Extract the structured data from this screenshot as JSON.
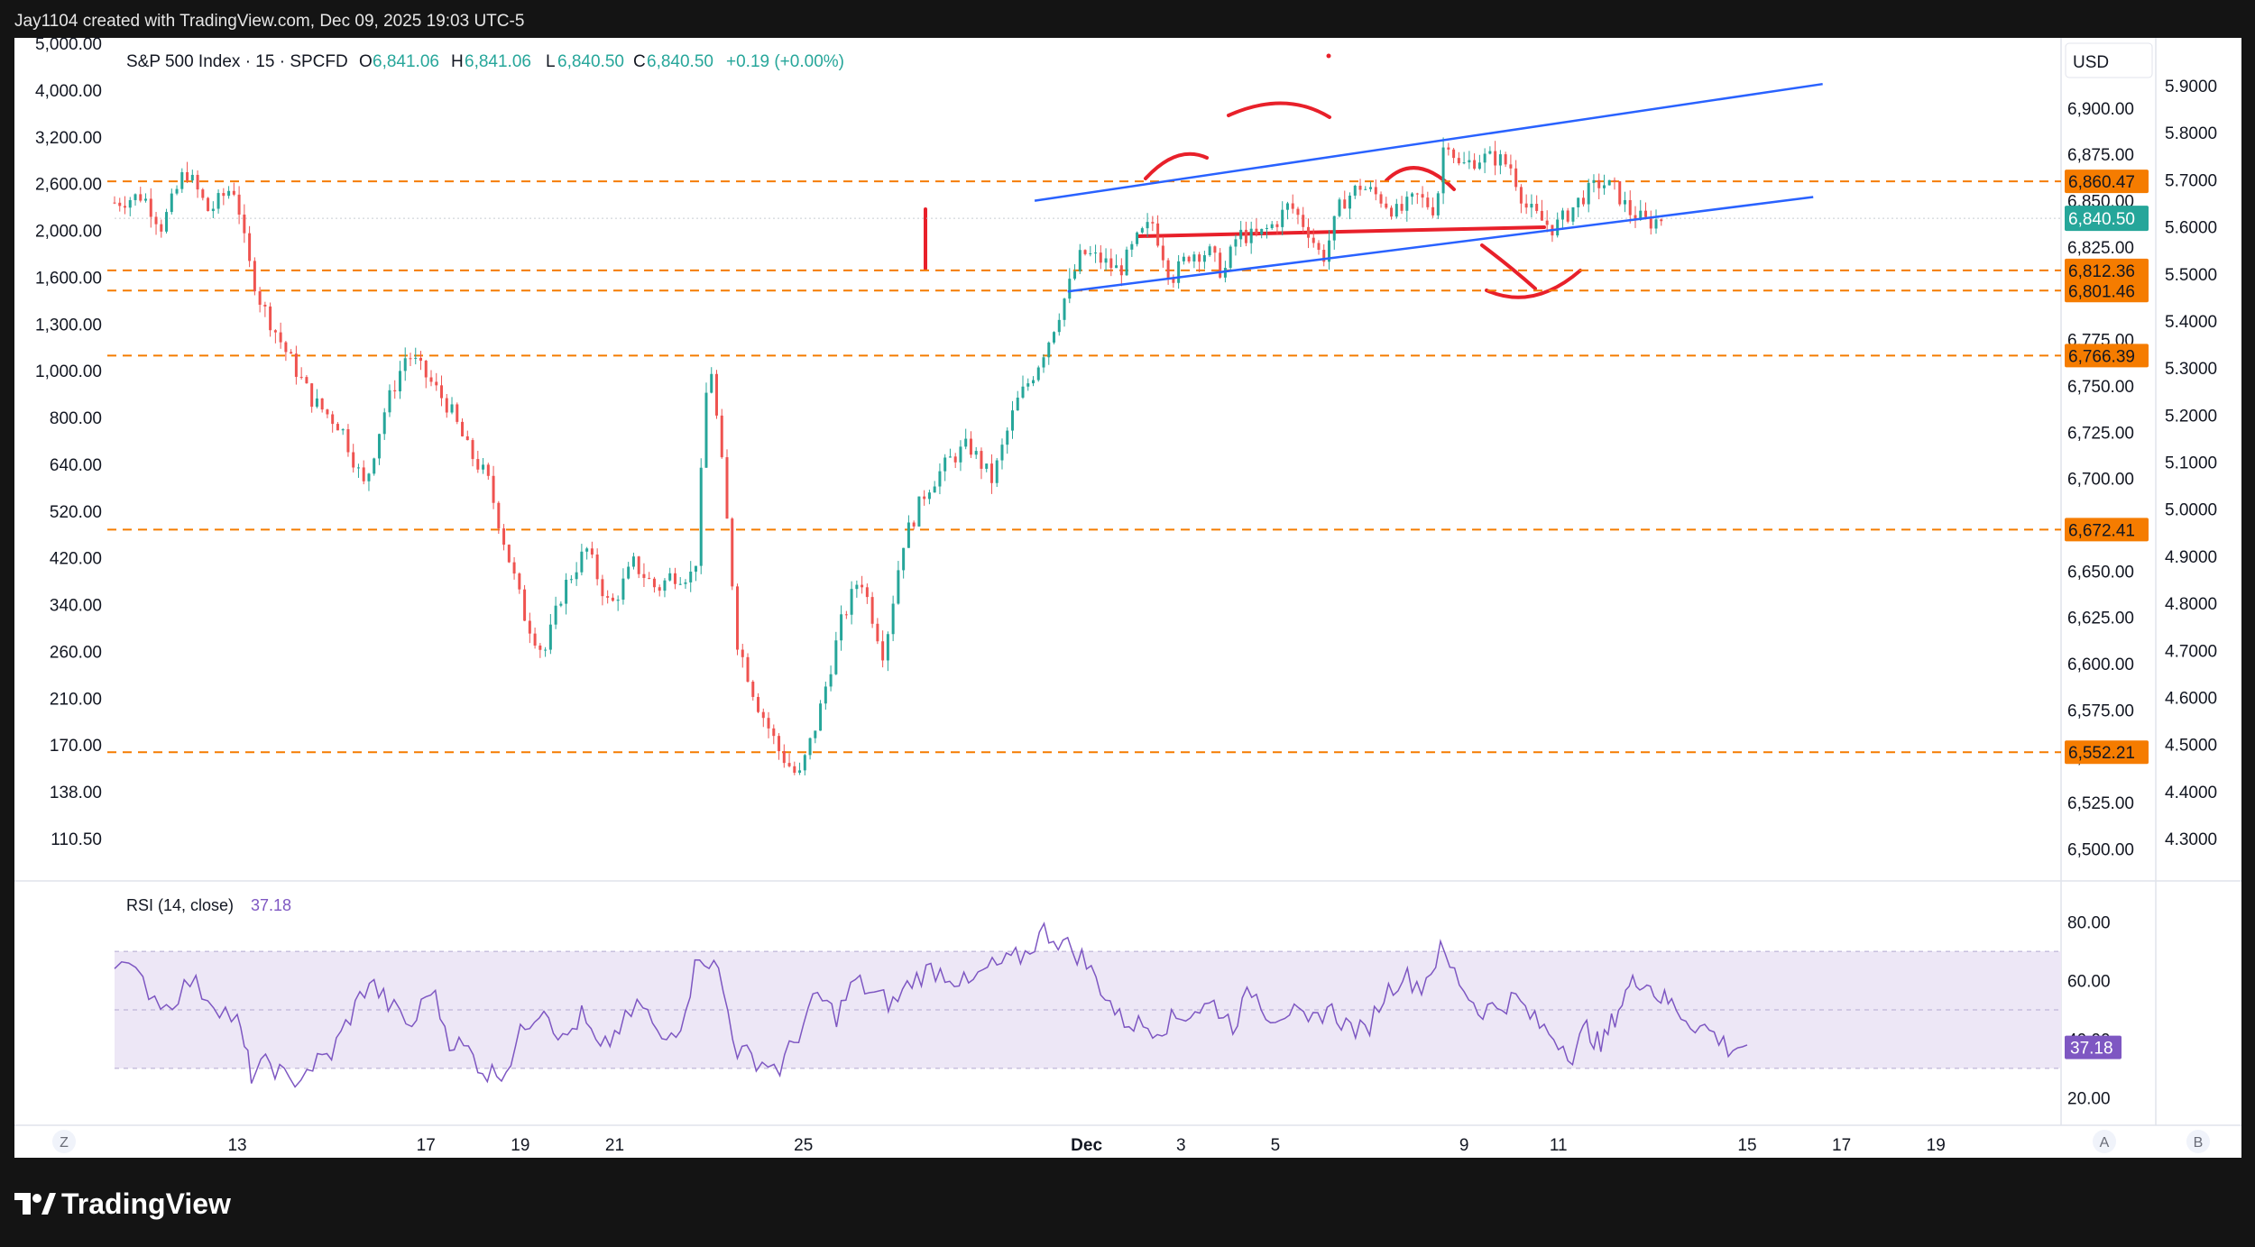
{
  "header": {
    "credit": "Jay1104 created with TradingView.com, Dec 09, 2025 19:03 UTC-5"
  },
  "legend": {
    "symbol": "S&P 500 Index · 15 · SPCFD",
    "o_label": "O",
    "o_value": "6,841.06",
    "h_label": "H",
    "h_value": "6,841.06",
    "l_label": "L",
    "l_value": "6,840.50",
    "c_label": "C",
    "c_value": "6,840.50",
    "change": "+0.19 (+0.00%)"
  },
  "currency": "USD",
  "rsi_label": "RSI (14, close)",
  "rsi_value": "37.18",
  "footer": {
    "brand": "TradingView"
  },
  "bottom_buttons": {
    "left": "Z",
    "a": "A",
    "b": "B"
  },
  "colors": {
    "up": "#26a69a",
    "down": "#ef5350",
    "level": "#f57c00",
    "trend": "#2962ff",
    "annotation": "#e8202a",
    "rsi": "#7e57c2",
    "rsi_band": "#ede7f6",
    "last_price": "#26a69a"
  },
  "chart_data": {
    "type": "candlestick",
    "title": "S&P 500 Index · 15 · SPCFD",
    "price_axis": {
      "min": 6490,
      "max": 6935,
      "ticks": [
        "6,500.00",
        "6,525.00",
        "6,550.00",
        "6,575.00",
        "6,600.00",
        "6,625.00",
        "6,650.00",
        "6,675.00",
        "6,700.00",
        "6,725.00",
        "6,750.00",
        "6,775.00",
        "6,800.00",
        "6,825.00",
        "6,850.00",
        "6,875.00",
        "6,900.00"
      ],
      "tick_values": [
        6500,
        6525,
        6550,
        6575,
        6600,
        6625,
        6650,
        6675,
        6700,
        6725,
        6750,
        6775,
        6800,
        6825,
        6850,
        6875,
        6900
      ]
    },
    "left_axis_ticks": [
      "5,000.00",
      "4,000.00",
      "3,200.00",
      "2,600.00",
      "2,000.00",
      "1,600.00",
      "1,300.00",
      "1,000.00",
      "800.00",
      "640.00",
      "520.00",
      "420.00",
      "340.00",
      "260.00",
      "210.00",
      "170.00",
      "138.00",
      "110.50"
    ],
    "right_axis_ticks": [
      "5.9000",
      "5.8000",
      "5.7000",
      "5.6000",
      "5.5000",
      "5.4000",
      "5.3000",
      "5.2000",
      "5.1000",
      "5.0000",
      "4.9000",
      "4.8000",
      "4.7000",
      "4.6000",
      "4.5000",
      "4.4000",
      "4.3000"
    ],
    "time_axis": {
      "labels": [
        "13",
        "17",
        "19",
        "21",
        "25",
        "Dec",
        "3",
        "5",
        "9",
        "11",
        "15",
        "17",
        "19"
      ],
      "label_days": [
        13,
        17,
        19,
        21,
        25,
        31,
        33,
        35,
        39,
        41,
        45,
        47,
        49
      ],
      "first_day": 10.4,
      "last_day": 51.5
    },
    "horizontal_levels": [
      {
        "value": 6860.47,
        "label": "6,860.47"
      },
      {
        "value": 6812.36,
        "label": "6,812.36"
      },
      {
        "value": 6801.46,
        "label": "6,801.46"
      },
      {
        "value": 6766.39,
        "label": "6,766.39"
      },
      {
        "value": 6672.41,
        "label": "6,672.41"
      },
      {
        "value": 6552.21,
        "label": "6,552.21"
      }
    ],
    "last_price": {
      "value": 6840.5,
      "label": "6,840.50"
    },
    "trendlines": [
      {
        "from": [
          29.9,
          6850
        ],
        "to": [
          46.6,
          6913
        ]
      },
      {
        "from": [
          30.6,
          6801
        ],
        "to": [
          46.4,
          6852
        ]
      }
    ],
    "price_path": [
      [
        10.4,
        6849
      ],
      [
        11.0,
        6853
      ],
      [
        11.4,
        6836
      ],
      [
        11.9,
        6867
      ],
      [
        12.4,
        6844
      ],
      [
        12.9,
        6858
      ],
      [
        13.0,
        6851
      ],
      [
        13.2,
        6820
      ],
      [
        13.5,
        6795
      ],
      [
        14.0,
        6770
      ],
      [
        14.6,
        6742
      ],
      [
        15.2,
        6728
      ],
      [
        15.7,
        6695
      ],
      [
        16.1,
        6735
      ],
      [
        16.6,
        6768
      ],
      [
        17.1,
        6752
      ],
      [
        17.5,
        6738
      ],
      [
        17.9,
        6715
      ],
      [
        18.3,
        6700
      ],
      [
        18.7,
        6662
      ],
      [
        19.1,
        6625
      ],
      [
        19.5,
        6605
      ],
      [
        19.9,
        6640
      ],
      [
        20.4,
        6662
      ],
      [
        20.9,
        6630
      ],
      [
        21.4,
        6654
      ],
      [
        21.9,
        6640
      ],
      [
        22.2,
        6648
      ],
      [
        22.7,
        6648
      ],
      [
        23.0,
        6770
      ],
      [
        23.3,
        6700
      ],
      [
        23.6,
        6612
      ],
      [
        24.0,
        6580
      ],
      [
        24.5,
        6552
      ],
      [
        24.9,
        6538
      ],
      [
        25.3,
        6570
      ],
      [
        25.8,
        6622
      ],
      [
        26.2,
        6648
      ],
      [
        26.7,
        6605
      ],
      [
        27.1,
        6665
      ],
      [
        27.6,
        6694
      ],
      [
        28.1,
        6710
      ],
      [
        28.5,
        6718
      ],
      [
        29.0,
        6699
      ],
      [
        29.5,
        6740
      ],
      [
        29.9,
        6758
      ],
      [
        30.2,
        6775
      ],
      [
        30.5,
        6795
      ],
      [
        30.9,
        6822
      ],
      [
        31.3,
        6818
      ],
      [
        31.7,
        6812
      ],
      [
        32.1,
        6830
      ],
      [
        32.4,
        6838
      ],
      [
        32.8,
        6808
      ],
      [
        33.2,
        6822
      ],
      [
        33.6,
        6822
      ],
      [
        33.9,
        6810
      ],
      [
        34.2,
        6832
      ],
      [
        34.6,
        6830
      ],
      [
        35.0,
        6838
      ],
      [
        35.3,
        6848
      ],
      [
        35.7,
        6834
      ],
      [
        36.0,
        6818
      ],
      [
        36.4,
        6849
      ],
      [
        36.8,
        6858
      ],
      [
        37.2,
        6852
      ],
      [
        37.6,
        6843
      ],
      [
        38.0,
        6852
      ],
      [
        38.4,
        6845
      ],
      [
        38.6,
        6887
      ],
      [
        38.9,
        6868
      ],
      [
        39.3,
        6873
      ],
      [
        39.7,
        6873
      ],
      [
        40.0,
        6868
      ],
      [
        40.3,
        6847
      ],
      [
        40.6,
        6840
      ],
      [
        40.9,
        6835
      ],
      [
        41.2,
        6843
      ],
      [
        41.5,
        6852
      ],
      [
        41.9,
        6860
      ],
      [
        42.2,
        6856
      ],
      [
        42.5,
        6844
      ],
      [
        42.9,
        6838
      ],
      [
        43.2,
        6840.5
      ]
    ],
    "rsi": {
      "min": 13,
      "max": 87,
      "ticks": [
        "80.00",
        "60.00",
        "40.00",
        "20.00"
      ],
      "tick_values": [
        80,
        60,
        40,
        20
      ],
      "band_upper": 70,
      "band_lower": 30,
      "mid": 50,
      "values": [
        [
          10.4,
          68
        ],
        [
          11.0,
          59
        ],
        [
          11.5,
          51
        ],
        [
          12.0,
          60
        ],
        [
          12.5,
          53
        ],
        [
          13.0,
          46
        ],
        [
          13.3,
          28
        ],
        [
          13.7,
          32
        ],
        [
          14.1,
          25
        ],
        [
          14.6,
          31
        ],
        [
          15.0,
          35
        ],
        [
          15.4,
          48
        ],
        [
          15.8,
          60
        ],
        [
          16.2,
          52
        ],
        [
          16.7,
          44
        ],
        [
          17.1,
          58
        ],
        [
          17.5,
          40
        ],
        [
          17.9,
          36
        ],
        [
          18.3,
          28
        ],
        [
          18.7,
          30
        ],
        [
          19.1,
          45
        ],
        [
          19.5,
          52
        ],
        [
          19.9,
          39
        ],
        [
          20.3,
          48
        ],
        [
          20.7,
          35
        ],
        [
          21.1,
          44
        ],
        [
          21.6,
          52
        ],
        [
          22.0,
          38
        ],
        [
          22.4,
          46
        ],
        [
          22.8,
          70
        ],
        [
          23.2,
          63
        ],
        [
          23.6,
          36
        ],
        [
          24.0,
          33
        ],
        [
          24.5,
          30
        ],
        [
          24.9,
          42
        ],
        [
          25.3,
          55
        ],
        [
          25.7,
          48
        ],
        [
          26.1,
          60
        ],
        [
          26.5,
          55
        ],
        [
          26.9,
          52
        ],
        [
          27.3,
          60
        ],
        [
          27.7,
          64
        ],
        [
          28.1,
          62
        ],
        [
          28.5,
          58
        ],
        [
          28.9,
          64
        ],
        [
          29.3,
          66
        ],
        [
          29.7,
          69
        ],
        [
          30.1,
          77
        ],
        [
          30.5,
          73
        ],
        [
          30.9,
          68
        ],
        [
          31.3,
          58
        ],
        [
          31.7,
          47
        ],
        [
          32.1,
          45
        ],
        [
          32.5,
          44
        ],
        [
          32.9,
          47
        ],
        [
          33.3,
          50
        ],
        [
          33.7,
          52
        ],
        [
          34.1,
          45
        ],
        [
          34.5,
          57
        ],
        [
          34.9,
          48
        ],
        [
          35.3,
          50
        ],
        [
          35.7,
          44
        ],
        [
          36.1,
          51
        ],
        [
          36.5,
          45
        ],
        [
          36.9,
          42
        ],
        [
          37.3,
          55
        ],
        [
          37.7,
          62
        ],
        [
          38.1,
          58
        ],
        [
          38.5,
          70
        ],
        [
          38.9,
          60
        ],
        [
          39.3,
          50
        ],
        [
          39.7,
          51
        ],
        [
          40.1,
          54
        ],
        [
          40.5,
          46
        ],
        [
          40.9,
          41
        ],
        [
          41.3,
          35
        ],
        [
          41.6,
          44
        ],
        [
          41.9,
          37
        ],
        [
          42.2,
          48
        ],
        [
          42.5,
          58
        ],
        [
          42.8,
          61
        ],
        [
          43.1,
          55
        ],
        [
          43.4,
          52
        ],
        [
          43.8,
          46
        ],
        [
          44.2,
          43
        ],
        [
          44.6,
          37
        ],
        [
          45.0,
          38
        ]
      ]
    }
  }
}
